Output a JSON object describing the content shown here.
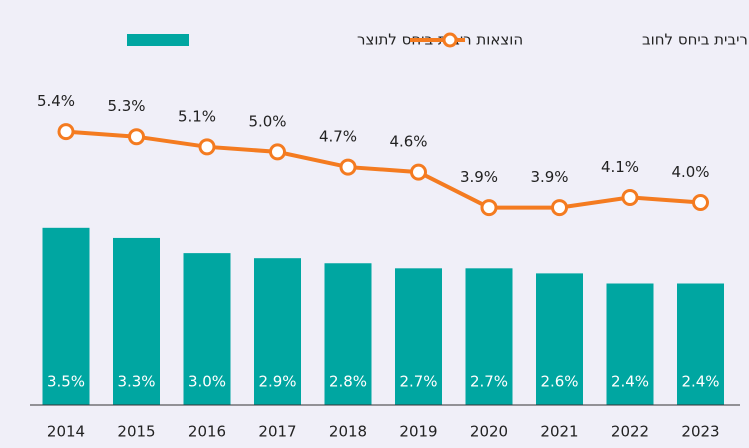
{
  "chart_data": {
    "type": "bar",
    "categories": [
      "2014",
      "2015",
      "2016",
      "2017",
      "2018",
      "2019",
      "2020",
      "2021",
      "2022",
      "2023"
    ],
    "series": [
      {
        "name": "הוצאות ריבית ביחס לתוצר",
        "type": "bar",
        "color": "#00a6a1",
        "values": [
          3.5,
          3.3,
          3.0,
          2.9,
          2.8,
          2.7,
          2.7,
          2.6,
          2.4,
          2.4
        ],
        "value_labels": [
          "3.5%",
          "3.3%",
          "3.0%",
          "2.9%",
          "2.8%",
          "2.7%",
          "2.7%",
          "2.6%",
          "2.4%",
          "2.4%"
        ]
      },
      {
        "name": "הוצאות ריבית ביחס לחוב",
        "type": "line",
        "color": "#f47b20",
        "values": [
          5.4,
          5.3,
          5.1,
          5.0,
          4.7,
          4.6,
          3.9,
          3.9,
          4.1,
          4.0
        ],
        "value_labels": [
          "5.4%",
          "5.3%",
          "5.1%",
          "5.0%",
          "4.7%",
          "4.6%",
          "3.9%",
          "3.9%",
          "4.1%",
          "4.0%"
        ]
      }
    ],
    "ylim": [
      0,
      8
    ]
  }
}
